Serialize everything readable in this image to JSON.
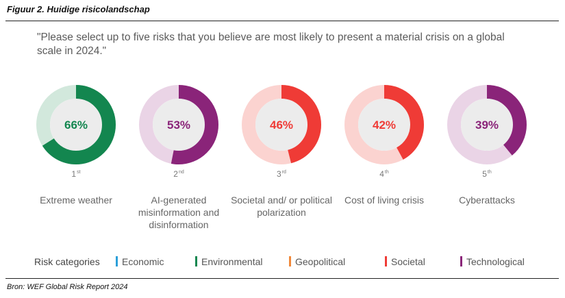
{
  "figure_title": "Figuur 2. Huidige risicolandschap",
  "chart_data": {
    "type": "donut",
    "title": "\"Please select up to five risks that you believe are most likely to present a material crisis on a global scale in 2024.\"",
    "unit": "%",
    "items": [
      {
        "rank": "1",
        "rank_suffix": "st",
        "label": "Extreme weather",
        "value": 66,
        "value_label": "66%",
        "category": "Environmental",
        "color": "#13864f",
        "track": "#d2e8dc"
      },
      {
        "rank": "2",
        "rank_suffix": "nd",
        "label": "AI-generated misinformation and disinformation",
        "value": 53,
        "value_label": "53%",
        "category": "Technological",
        "color": "#8a2479",
        "track": "#ead4e6"
      },
      {
        "rank": "3",
        "rank_suffix": "rd",
        "label": "Societal and/ or political polarization",
        "value": 46,
        "value_label": "46%",
        "category": "Societal",
        "color": "#ef3b36",
        "track": "#fbd3d0"
      },
      {
        "rank": "4",
        "rank_suffix": "th",
        "label": "Cost of living crisis",
        "value": 42,
        "value_label": "42%",
        "category": "Societal",
        "color": "#ef3b36",
        "track": "#fbd3d0"
      },
      {
        "rank": "5",
        "rank_suffix": "th",
        "label": "Cyberattacks",
        "value": 39,
        "value_label": "39%",
        "category": "Technological",
        "color": "#8a2479",
        "track": "#ead4e6"
      }
    ],
    "legend": {
      "title": "Risk categories",
      "entries": [
        {
          "name": "Economic",
          "color": "#2b9fd9"
        },
        {
          "name": "Environmental",
          "color": "#13864f"
        },
        {
          "name": "Geopolitical",
          "color": "#f0883a"
        },
        {
          "name": "Societal",
          "color": "#ef3b36"
        },
        {
          "name": "Technological",
          "color": "#8a2479"
        }
      ]
    }
  },
  "source": "Bron: WEF Global Risk Report 2024"
}
